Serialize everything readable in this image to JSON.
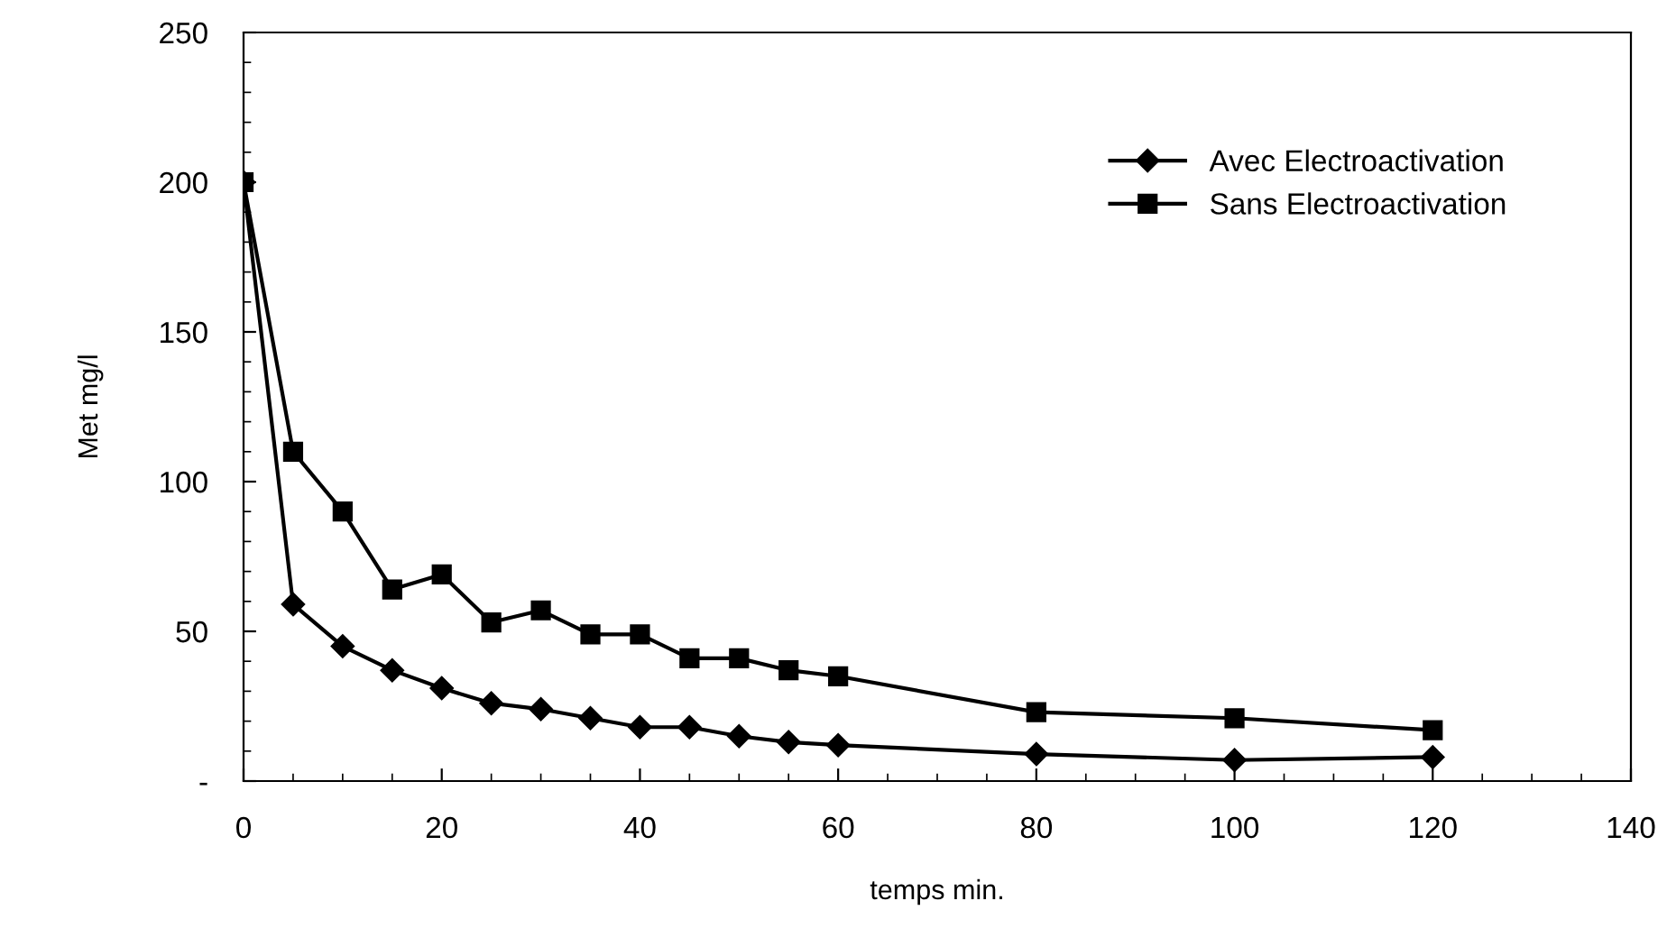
{
  "chart_data": {
    "type": "line",
    "xlabel": "temps min.",
    "ylabel": "Met mg/l",
    "xlim": [
      0,
      140
    ],
    "xticks": [
      0,
      20,
      40,
      60,
      80,
      100,
      120,
      140
    ],
    "ylim": [
      0,
      250
    ],
    "yticks": [
      {
        "value": 0,
        "label": "-"
      },
      50,
      100,
      150,
      200,
      250
    ],
    "grid": false,
    "legend": "top right",
    "line_style": "solid",
    "series": [
      {
        "name": "Avec Electroactivation",
        "color": "#000000",
        "marker": "diamond",
        "x": [
          0,
          5,
          10,
          15,
          20,
          25,
          30,
          35,
          40,
          45,
          50,
          55,
          60,
          80,
          100,
          120
        ],
        "values": [
          200,
          59,
          45,
          37,
          31,
          26,
          24,
          21,
          18,
          18,
          15,
          13,
          12,
          9,
          7,
          8
        ]
      },
      {
        "name": "Sans Electroactivation",
        "color": "#000000",
        "marker": "square",
        "x": [
          0,
          5,
          10,
          15,
          20,
          25,
          30,
          35,
          40,
          45,
          50,
          55,
          60,
          80,
          100,
          120
        ],
        "values": [
          200,
          110,
          90,
          64,
          69,
          53,
          57,
          49,
          49,
          41,
          41,
          37,
          35,
          23,
          21,
          17
        ]
      }
    ]
  }
}
